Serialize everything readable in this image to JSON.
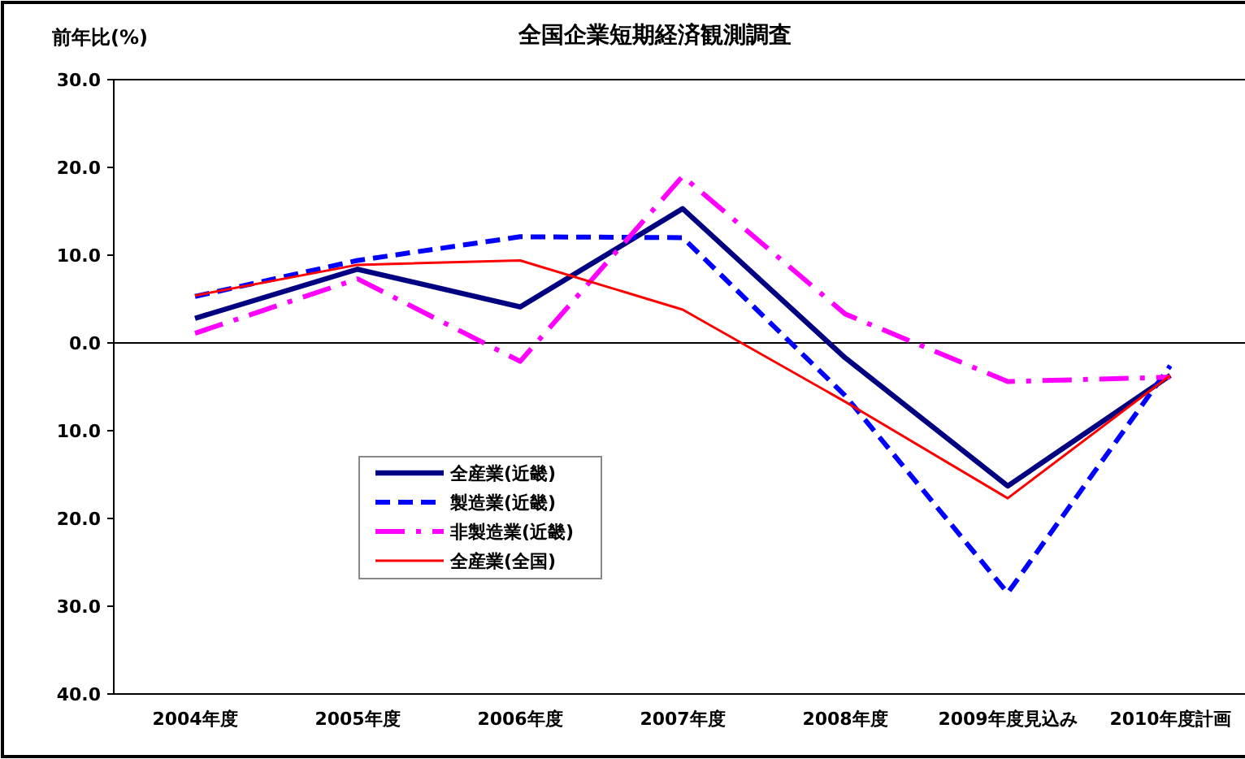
{
  "chart_data": {
    "type": "line",
    "title": "全国企業短期経済観測調査",
    "ylabel": "前年比(%)",
    "categories": [
      "2004年度",
      "2005年度",
      "2006年度",
      "2007年度",
      "2008年度",
      "2009年度見込み",
      "2010年度計画"
    ],
    "ylim": [
      -40,
      30
    ],
    "yticks": [
      {
        "value": 30,
        "label": "30.0"
      },
      {
        "value": 20,
        "label": "20.0"
      },
      {
        "value": 10,
        "label": "10.0"
      },
      {
        "value": 0,
        "label": "0.0"
      },
      {
        "value": -10,
        "label": "10.0"
      },
      {
        "value": -20,
        "label": "20.0"
      },
      {
        "value": -30,
        "label": "30.0"
      },
      {
        "value": -40,
        "label": "40.0"
      }
    ],
    "ref_lines": [
      {
        "axis": "y",
        "value": 0,
        "color": "#000000"
      }
    ],
    "grid": false,
    "legend": "left",
    "marker": "none",
    "series": [
      {
        "name": "全産業(近畿)",
        "color": "#000080",
        "line_style": "solid",
        "values": [
          2.8,
          8.4,
          4.1,
          15.3,
          -1.7,
          -16.3,
          -3.7
        ]
      },
      {
        "name": "製造業(近畿)",
        "color": "#0000ff",
        "line_style": "dashed",
        "values": [
          5.3,
          9.4,
          12.1,
          12.0,
          -6.0,
          -28.5,
          -2.6
        ]
      },
      {
        "name": "非製造業(近畿)",
        "color": "#ff00ff",
        "line_style": "dashdot",
        "values": [
          1.1,
          7.3,
          -2.1,
          19.0,
          3.3,
          -4.4,
          -3.9
        ]
      },
      {
        "name": "全産業(全国)",
        "color": "#ff0000",
        "line_style": "solid",
        "values": [
          5.4,
          8.9,
          9.4,
          3.8,
          -6.7,
          -17.7,
          -3.7
        ]
      }
    ]
  }
}
